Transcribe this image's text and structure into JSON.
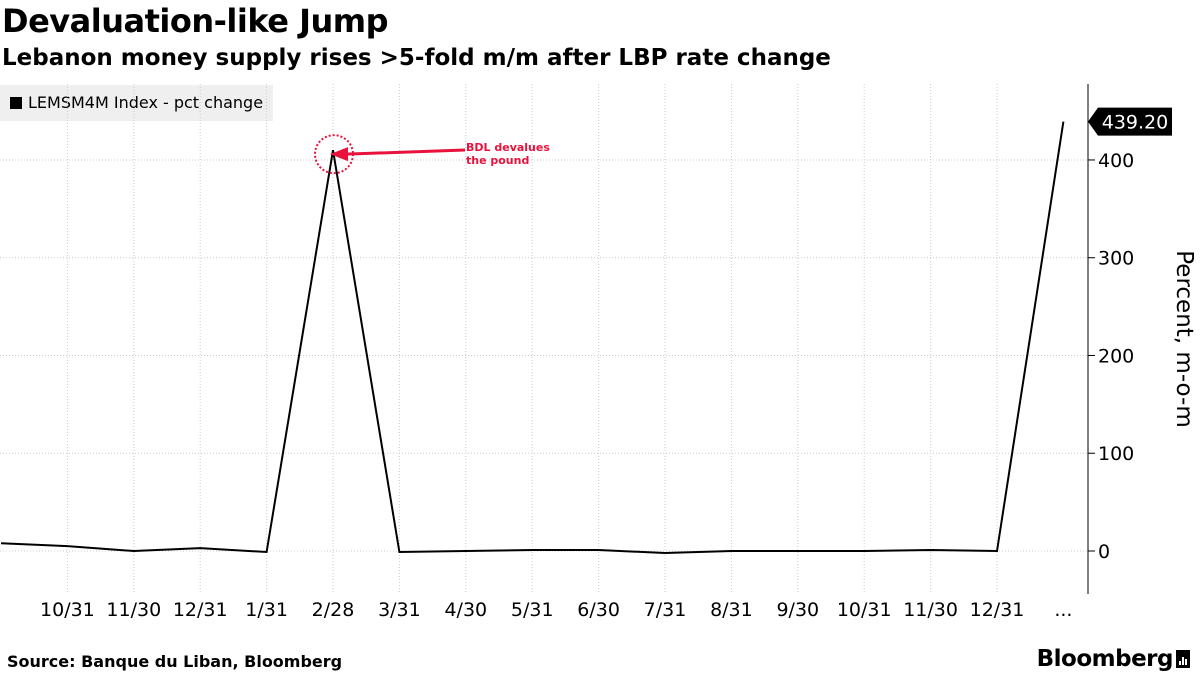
{
  "title": "Devaluation-like Jump",
  "subtitle": "Lebanon money supply rises >5-fold m/m after LBP rate change",
  "source": "Source: Banque du Liban, Bloomberg",
  "brand": "Bloomberg",
  "colors": {
    "line": "#000000",
    "annotation": "#e8123c",
    "grid": "#cccccc",
    "legend_bg": "#efefef"
  },
  "chart_data": {
    "type": "line",
    "title": "Devaluation-like Jump",
    "subtitle": "Lebanon money supply rises >5-fold m/m after LBP rate change",
    "ylabel": "Percent, m-o-m",
    "xlabel": "",
    "ylim": [
      -45,
      480
    ],
    "yticks": [
      0,
      100,
      200,
      300,
      400
    ],
    "grid": "horizontal-dotted",
    "legend_position": "top-left",
    "x_tick_labels": [
      "10/31",
      "11/30",
      "12/31",
      "1/31",
      "2/28",
      "3/31",
      "4/30",
      "5/31",
      "6/30",
      "7/31",
      "8/31",
      "9/30",
      "10/31",
      "11/30",
      "12/31",
      "..."
    ],
    "series": [
      {
        "name": "LEMSM4M Index - pct change",
        "x": [
          "9/30",
          "10/31",
          "11/30",
          "12/31",
          "1/31",
          "2/28",
          "3/31",
          "4/30",
          "5/31",
          "6/30",
          "7/31",
          "8/31",
          "9/30",
          "10/31",
          "11/30",
          "12/31",
          "1/31"
        ],
        "values": [
          8,
          5,
          0,
          3,
          -1,
          410,
          -1,
          0,
          1,
          1,
          -2,
          0,
          0,
          0,
          1,
          0,
          439.2
        ]
      }
    ],
    "last_value_label": "439.20",
    "annotation": {
      "text_line1": "BDL devalues",
      "text_line2": "the pound",
      "target_index": 5
    }
  }
}
